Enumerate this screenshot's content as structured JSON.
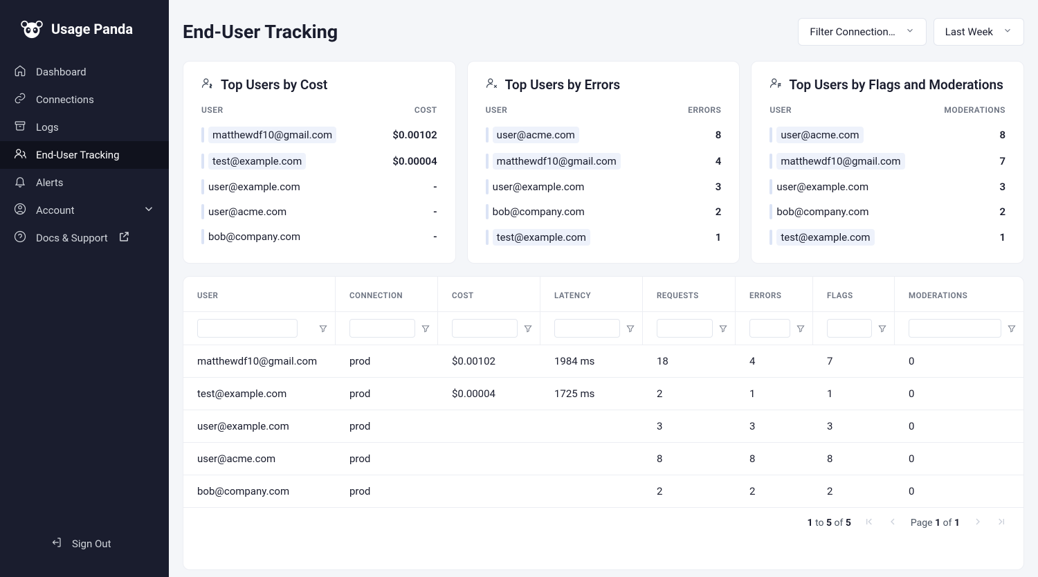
{
  "brand": "Usage Panda",
  "nav": {
    "dashboard": "Dashboard",
    "connections": "Connections",
    "logs": "Logs",
    "tracking": "End-User Tracking",
    "alerts": "Alerts",
    "account": "Account",
    "docs": "Docs & Support",
    "signout": "Sign Out"
  },
  "page_title": "End-User Tracking",
  "filters": {
    "connection": "Filter Connection…",
    "range": "Last Week"
  },
  "cards": {
    "cost": {
      "title": "Top Users by Cost",
      "col_left": "USER",
      "col_right": "COST",
      "rows": [
        {
          "user": "matthewdf10@gmail.com",
          "value": "$0.00102",
          "hl": true
        },
        {
          "user": "test@example.com",
          "value": "$0.00004",
          "hl": true
        },
        {
          "user": "user@example.com",
          "value": "-",
          "hl": false
        },
        {
          "user": "user@acme.com",
          "value": "-",
          "hl": false
        },
        {
          "user": "bob@company.com",
          "value": "-",
          "hl": false
        }
      ]
    },
    "errors": {
      "title": "Top Users by Errors",
      "col_left": "USER",
      "col_right": "ERRORS",
      "rows": [
        {
          "user": "user@acme.com",
          "value": "8",
          "hl": true
        },
        {
          "user": "matthewdf10@gmail.com",
          "value": "4",
          "hl": true
        },
        {
          "user": "user@example.com",
          "value": "3",
          "hl": false
        },
        {
          "user": "bob@company.com",
          "value": "2",
          "hl": false
        },
        {
          "user": "test@example.com",
          "value": "1",
          "hl": true
        }
      ]
    },
    "mods": {
      "title": "Top Users by Flags and Moderations",
      "col_left": "USER",
      "col_right": "MODERATIONS",
      "rows": [
        {
          "user": "user@acme.com",
          "value": "8",
          "hl": true
        },
        {
          "user": "matthewdf10@gmail.com",
          "value": "7",
          "hl": true
        },
        {
          "user": "user@example.com",
          "value": "3",
          "hl": false
        },
        {
          "user": "bob@company.com",
          "value": "2",
          "hl": false
        },
        {
          "user": "test@example.com",
          "value": "1",
          "hl": true
        }
      ]
    }
  },
  "table": {
    "headers": {
      "user": "USER",
      "connection": "CONNECTION",
      "cost": "COST",
      "latency": "LATENCY",
      "requests": "REQUESTS",
      "errors": "ERRORS",
      "flags": "FLAGS",
      "moderations": "MODERATIONS"
    },
    "rows": [
      {
        "user": "matthewdf10@gmail.com",
        "connection": "prod",
        "cost": "$0.00102",
        "latency": "1984 ms",
        "requests": "18",
        "errors": "4",
        "flags": "7",
        "moderations": "0"
      },
      {
        "user": "test@example.com",
        "connection": "prod",
        "cost": "$0.00004",
        "latency": "1725 ms",
        "requests": "2",
        "errors": "1",
        "flags": "1",
        "moderations": "0"
      },
      {
        "user": "user@example.com",
        "connection": "prod",
        "cost": "",
        "latency": "",
        "requests": "3",
        "errors": "3",
        "flags": "3",
        "moderations": "0"
      },
      {
        "user": "user@acme.com",
        "connection": "prod",
        "cost": "",
        "latency": "",
        "requests": "8",
        "errors": "8",
        "flags": "8",
        "moderations": "0"
      },
      {
        "user": "bob@company.com",
        "connection": "prod",
        "cost": "",
        "latency": "",
        "requests": "2",
        "errors": "2",
        "flags": "2",
        "moderations": "0"
      }
    ]
  },
  "pager": {
    "from": "1",
    "to": "5",
    "of_label": "of",
    "total": "5",
    "page_label": "Page",
    "page": "1",
    "pages": "1",
    "to_label": "to"
  }
}
